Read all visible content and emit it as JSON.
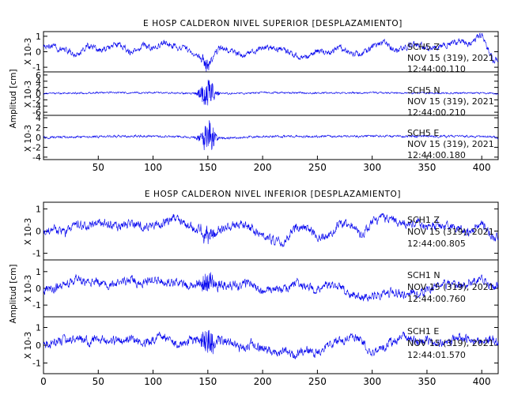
{
  "chart_data": [
    {
      "type": "line",
      "title": "E HOSP CALDERON NIVEL SUPERIOR [DESPLAZAMIENTO]",
      "ylabel": "Amplitud [cm]",
      "xlim": [
        0,
        415
      ],
      "x_ticks": [
        50,
        100,
        150,
        200,
        250,
        300,
        350,
        400
      ],
      "series": [
        {
          "scale_label": "X 10-3",
          "y_ticks": [
            -1,
            0,
            1
          ],
          "ylim": [
            -1.3,
            1.3
          ],
          "annotation": [
            "SCH5  Z",
            "NOV 15 (319), 2021",
            "12:44:00.110"
          ],
          "x": [
            0,
            10,
            20,
            30,
            40,
            50,
            60,
            70,
            80,
            90,
            100,
            110,
            120,
            130,
            140,
            145,
            150,
            155,
            160,
            170,
            180,
            190,
            200,
            210,
            220,
            230,
            240,
            250,
            260,
            270,
            280,
            290,
            300,
            310,
            320,
            330,
            340,
            350,
            360,
            370,
            380,
            390,
            400,
            405,
            410,
            415
          ],
          "values": [
            0.3,
            0.3,
            0.1,
            -0.3,
            0.4,
            0.1,
            0.3,
            0.5,
            -0.1,
            0.4,
            0.3,
            0.6,
            0.4,
            0.2,
            -0.2,
            -0.5,
            -0.9,
            -0.4,
            0.2,
            0.1,
            -0.2,
            -0.1,
            0.3,
            0.2,
            0.1,
            -0.2,
            -0.4,
            0.1,
            -0.1,
            0.3,
            0.0,
            -0.2,
            0.3,
            0.6,
            0.1,
            0.3,
            0.5,
            0.2,
            0.3,
            0.4,
            0.7,
            0.5,
            1.1,
            0.2,
            -0.5,
            -0.5
          ],
          "burst_center": 150,
          "noise_amplitude": 0.35,
          "burst_amplitude": 0.35
        },
        {
          "scale_label": "X 10-3",
          "y_ticks": [
            -6,
            -4,
            -2,
            0,
            2,
            4,
            6
          ],
          "ylim": [
            -7,
            7
          ],
          "annotation": [
            "SCH5  N",
            "NOV 15 (319), 2021",
            "12:44:00.210"
          ],
          "x": [
            0,
            50,
            100,
            140,
            150,
            160,
            200,
            250,
            300,
            350,
            400,
            415
          ],
          "values": [
            0,
            0.3,
            0.3,
            0,
            0.2,
            0,
            0.3,
            0.2,
            0.3,
            0.2,
            0.2,
            0
          ],
          "burst_center": 150,
          "noise_amplitude": 0.5,
          "burst_amplitude": 4.8
        },
        {
          "scale_label": "X 10-3",
          "y_ticks": [
            -4,
            -2,
            0,
            2,
            4
          ],
          "ylim": [
            -4.5,
            4.5
          ],
          "annotation": [
            "SCH5  E",
            "NOV 15 (319), 2021",
            "12:44:00.180"
          ],
          "x": [
            0,
            50,
            100,
            140,
            150,
            160,
            200,
            250,
            300,
            350,
            400,
            415
          ],
          "values": [
            0,
            0.2,
            0.3,
            0,
            0.2,
            -0.2,
            0.2,
            0.2,
            0.3,
            0.2,
            0.2,
            0
          ],
          "burst_center": 150,
          "noise_amplitude": 0.4,
          "burst_amplitude": 3.4
        }
      ]
    },
    {
      "type": "line",
      "title": "E HOSP CALDERON NIVEL INFERIOR [DESPLAZAMIENTO]",
      "ylabel": "Amplitud [cm]",
      "xlim": [
        0,
        415
      ],
      "x_ticks": [
        0,
        50,
        100,
        150,
        200,
        250,
        300,
        350,
        400
      ],
      "series": [
        {
          "scale_label": "X 10-3",
          "y_ticks": [
            -1,
            0,
            1
          ],
          "ylim": [
            -1.3,
            1.3
          ],
          "annotation": [
            "SCH1  Z",
            "NOV 15 (319), 2021",
            "12:44:00.805"
          ],
          "x": [
            0,
            10,
            20,
            30,
            40,
            50,
            60,
            70,
            80,
            90,
            100,
            110,
            120,
            130,
            140,
            150,
            160,
            170,
            180,
            190,
            200,
            210,
            220,
            230,
            240,
            250,
            260,
            270,
            280,
            290,
            300,
            310,
            320,
            330,
            340,
            350,
            360,
            370,
            380,
            390,
            400,
            410,
            415
          ],
          "values": [
            0.0,
            0.0,
            -0.1,
            0.3,
            0.2,
            0.4,
            0.3,
            0.2,
            0.3,
            0.2,
            0.2,
            0.4,
            0.6,
            0.3,
            0.1,
            -0.3,
            0.1,
            0.2,
            0.3,
            0.1,
            -0.2,
            -0.4,
            -0.5,
            0.2,
            0.1,
            -0.2,
            -0.3,
            0.4,
            0.3,
            -0.2,
            0.4,
            0.6,
            0.5,
            0.3,
            0.4,
            0.1,
            0.3,
            0.2,
            0.1,
            -0.1,
            0.4,
            -0.3,
            -0.2
          ],
          "burst_center": 150,
          "noise_amplitude": 0.35,
          "burst_amplitude": 0.3
        },
        {
          "scale_label": "X 10-3",
          "y_ticks": [
            -1,
            0,
            1
          ],
          "ylim": [
            -1.7,
            1.7
          ],
          "annotation": [
            "SCH1  N",
            "NOV 15 (319), 2021",
            "12:44:00.760"
          ],
          "x": [
            0,
            10,
            20,
            30,
            40,
            50,
            60,
            70,
            80,
            90,
            100,
            110,
            120,
            130,
            140,
            150,
            160,
            170,
            180,
            190,
            200,
            210,
            220,
            230,
            240,
            250,
            260,
            270,
            280,
            290,
            300,
            310,
            320,
            330,
            340,
            350,
            360,
            370,
            380,
            390,
            400,
            410,
            415
          ],
          "values": [
            -0.1,
            0.0,
            0.2,
            0.6,
            0.3,
            0.4,
            0.2,
            0.3,
            0.5,
            0.2,
            0.6,
            0.4,
            0.3,
            0.2,
            0.3,
            0.4,
            0.2,
            0.1,
            0.2,
            0.3,
            -0.2,
            -0.1,
            0.0,
            0.3,
            0.1,
            -0.1,
            0.2,
            0.1,
            -0.3,
            -0.6,
            -0.5,
            -0.3,
            -0.2,
            -0.4,
            -0.3,
            -0.1,
            0.2,
            0.3,
            0.1,
            0.4,
            0.5,
            0.1,
            0.2
          ],
          "burst_center": 150,
          "noise_amplitude": 0.45,
          "burst_amplitude": 0.7
        },
        {
          "scale_label": "X 10-3",
          "y_ticks": [
            -1,
            0,
            1
          ],
          "ylim": [
            -1.6,
            1.6
          ],
          "annotation": [
            "SCH1  E",
            "NOV 15 (319), 2021",
            "12:44:01.570"
          ],
          "x": [
            0,
            10,
            20,
            30,
            40,
            50,
            60,
            70,
            80,
            90,
            100,
            110,
            120,
            130,
            140,
            150,
            160,
            170,
            180,
            190,
            200,
            210,
            220,
            230,
            240,
            250,
            260,
            270,
            280,
            290,
            300,
            310,
            320,
            330,
            340,
            350,
            360,
            370,
            380,
            390,
            400,
            410,
            415
          ],
          "values": [
            0.0,
            0.1,
            0.3,
            0.5,
            0.2,
            0.4,
            0.3,
            0.2,
            0.4,
            0.1,
            0.3,
            0.5,
            0.1,
            0.2,
            0.4,
            0.1,
            0.3,
            0.2,
            -0.2,
            0.1,
            -0.2,
            -0.4,
            -0.3,
            -0.6,
            -0.2,
            -0.4,
            0.1,
            0.2,
            0.5,
            0.3,
            -0.4,
            -0.1,
            0.3,
            0.5,
            0.2,
            0.3,
            0.1,
            0.2,
            0.4,
            0.3,
            0.2,
            0.3,
            0.2
          ],
          "burst_center": 150,
          "noise_amplitude": 0.45,
          "burst_amplitude": 0.8
        }
      ]
    }
  ]
}
